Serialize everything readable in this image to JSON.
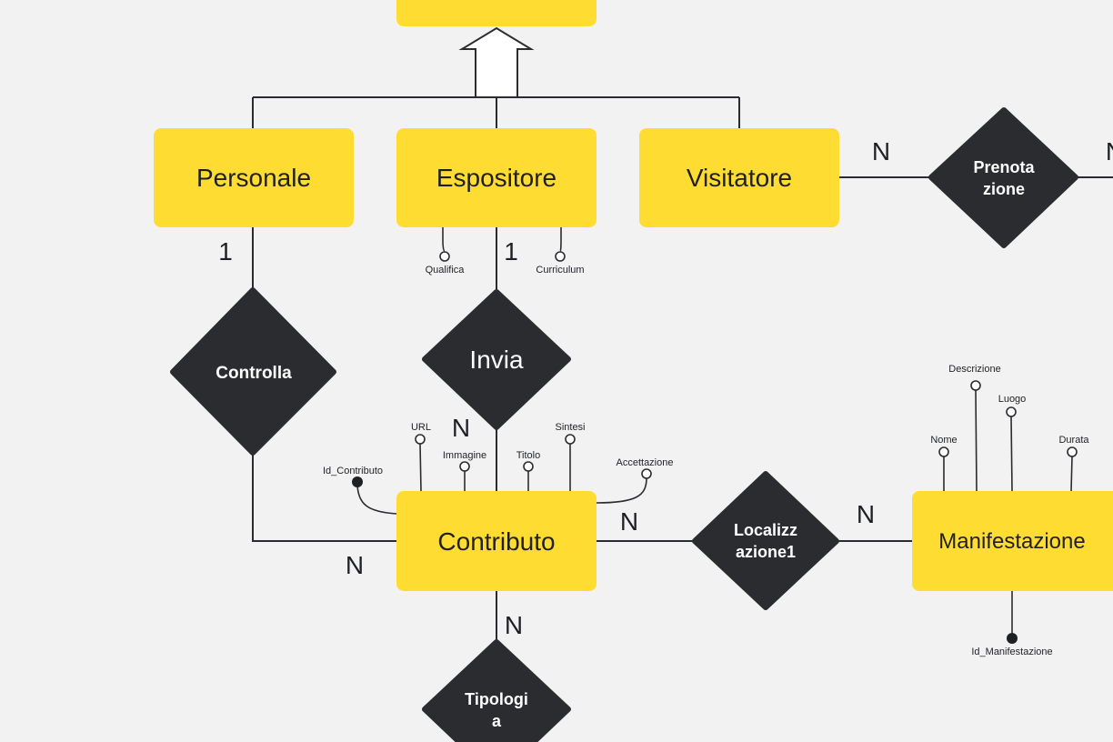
{
  "colors": {
    "background": "#f2f2f2",
    "entity_fill": "#ffdc32",
    "relationship_fill": "#2b2c30",
    "line": "#2b2c30",
    "text_dark": "#1f2024",
    "text_light": "#ffffff"
  },
  "entities": {
    "personale": "Personale",
    "espositore": "Espositore",
    "visitatore": "Visitatore",
    "contributo": "Contributo",
    "manifestazione": "Manifestazione"
  },
  "relationships": {
    "controlla": [
      "Controlla"
    ],
    "invia": [
      "Invia"
    ],
    "prenotazione": [
      "Prenota",
      "zione"
    ],
    "localizzazione": [
      "Localizz",
      "azione1"
    ],
    "tipologia": [
      "Tipologi",
      "a"
    ]
  },
  "cardinalities": {
    "personale_controlla": "1",
    "espositore_invia": "1",
    "invia_contributo": "N",
    "controlla_contributo": "N",
    "contributo_localizzazione": "N",
    "localizzazione_manifestazione": "N",
    "contributo_tipologia": "N",
    "visitatore_prenotazione": "N",
    "prenotazione_right": "N"
  },
  "attributes": {
    "qualifica": "Qualifica",
    "curriculum": "Curriculum",
    "url": "URL",
    "immagine": "Immagine",
    "titolo": "Titolo",
    "sintesi": "Sintesi",
    "accettazione": "Accettazione",
    "id_contributo": "Id_Contributo",
    "descrizione": "Descrizione",
    "luogo": "Luogo",
    "nome": "Nome",
    "durata": "Durata",
    "id_manifestazione": "Id_Manifestazione"
  }
}
